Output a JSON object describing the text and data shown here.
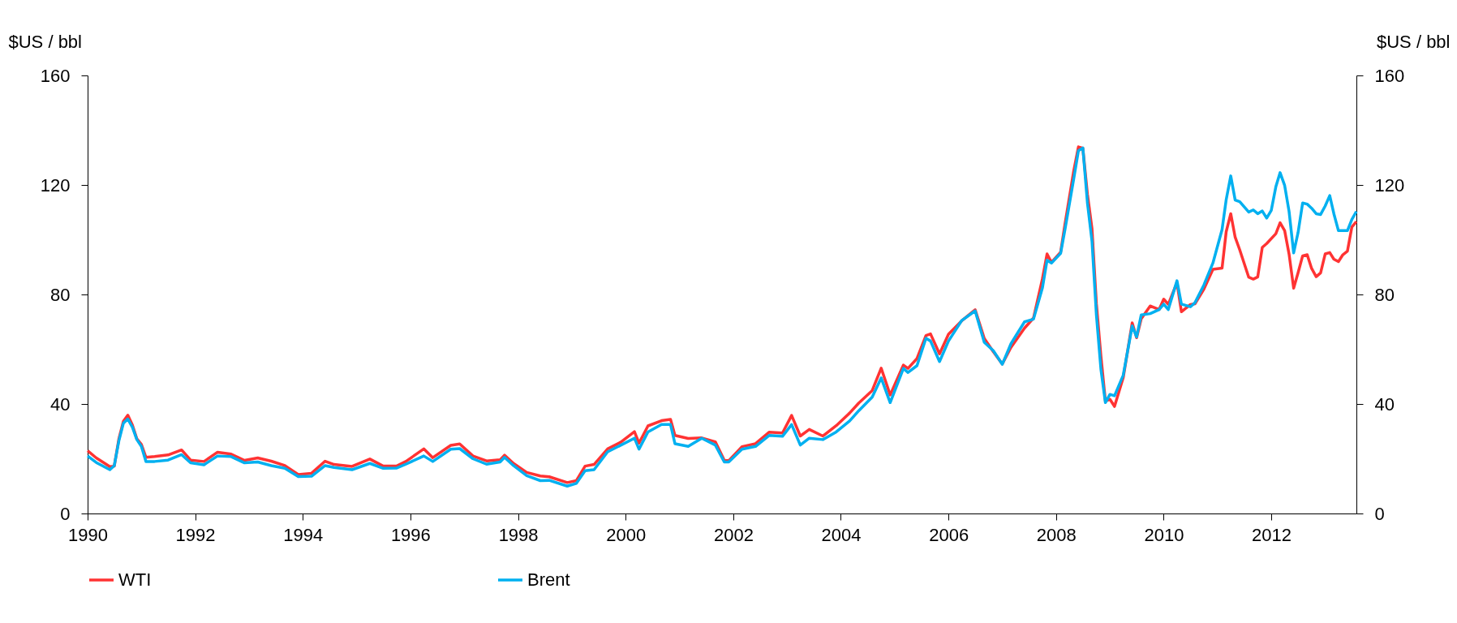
{
  "chart_data": {
    "type": "line",
    "ylabel": "$US / bbl",
    "y2label": "$US / bbl",
    "xlim": [
      "1990-01",
      "2013-08"
    ],
    "xticks": [
      "1990",
      "1992",
      "1994",
      "1996",
      "1998",
      "2000",
      "2002",
      "2004",
      "2006",
      "2008",
      "2010",
      "2012"
    ],
    "ylim": [
      0,
      160
    ],
    "yticks": [
      0,
      40,
      80,
      120,
      160
    ],
    "y2lim": [
      0,
      160
    ],
    "y2ticks": [
      0,
      40,
      80,
      120,
      160
    ],
    "grid": false,
    "legend": "bottom",
    "line_style": "solid",
    "marker": "none",
    "series": [
      {
        "name": "WTI",
        "color": "#ff3333",
        "x": [
          "1990-01",
          "1990-03",
          "1990-06",
          "1990-07",
          "1990-08",
          "1990-09",
          "1990-10",
          "1990-11",
          "1990-12",
          "1991-01",
          "1991-02",
          "1991-04",
          "1991-07",
          "1991-10",
          "1991-12",
          "1992-03",
          "1992-06",
          "1992-09",
          "1992-12",
          "1993-03",
          "1993-06",
          "1993-09",
          "1993-12",
          "1994-03",
          "1994-06",
          "1994-08",
          "1994-12",
          "1995-04",
          "1995-07",
          "1995-10",
          "1995-12",
          "1996-04",
          "1996-06",
          "1996-10",
          "1996-12",
          "1997-03",
          "1997-06",
          "1997-09",
          "1997-10",
          "1997-12",
          "1998-03",
          "1998-06",
          "1998-08",
          "1998-12",
          "1999-02",
          "1999-04",
          "1999-06",
          "1999-09",
          "1999-12",
          "2000-03",
          "2000-04",
          "2000-06",
          "2000-09",
          "2000-11",
          "2000-12",
          "2001-03",
          "2001-06",
          "2001-09",
          "2001-11",
          "2001-12",
          "2002-03",
          "2002-06",
          "2002-09",
          "2002-12",
          "2003-02",
          "2003-04",
          "2003-06",
          "2003-09",
          "2003-12",
          "2004-03",
          "2004-05",
          "2004-08",
          "2004-10",
          "2004-12",
          "2005-03",
          "2005-04",
          "2005-06",
          "2005-08",
          "2005-09",
          "2005-11",
          "2006-01",
          "2006-04",
          "2006-07",
          "2006-09",
          "2006-11",
          "2007-01",
          "2007-03",
          "2007-06",
          "2007-08",
          "2007-10",
          "2007-11",
          "2007-12",
          "2008-02",
          "2008-03",
          "2008-05",
          "2008-06",
          "2008-07",
          "2008-08",
          "2008-09",
          "2008-10",
          "2008-11",
          "2008-12",
          "2009-01",
          "2009-02",
          "2009-04",
          "2009-06",
          "2009-07",
          "2009-08",
          "2009-10",
          "2009-12",
          "2010-01",
          "2010-02",
          "2010-04",
          "2010-05",
          "2010-07",
          "2010-08",
          "2010-10",
          "2010-12",
          "2011-02",
          "2011-03",
          "2011-04",
          "2011-05",
          "2011-06",
          "2011-08",
          "2011-09",
          "2011-10",
          "2011-11",
          "2011-12",
          "2012-02",
          "2012-03",
          "2012-04",
          "2012-05",
          "2012-06",
          "2012-07",
          "2012-08",
          "2012-09",
          "2012-10",
          "2012-11",
          "2012-12",
          "2013-01",
          "2013-02",
          "2013-03",
          "2013-04",
          "2013-05",
          "2013-06",
          "2013-07",
          "2013-08"
        ],
        "values": [
          22.9,
          20.3,
          17.1,
          17.3,
          27.2,
          33.7,
          35.9,
          32.3,
          27.3,
          25.2,
          20.5,
          20.8,
          21.4,
          23.2,
          19.5,
          19.0,
          22.4,
          21.7,
          19.4,
          20.3,
          19.1,
          17.5,
          14.2,
          14.7,
          19.1,
          17.9,
          17.2,
          19.9,
          17.3,
          17.4,
          19.0,
          23.6,
          20.4,
          24.9,
          25.4,
          21.0,
          19.2,
          19.6,
          21.3,
          18.3,
          15.0,
          13.7,
          13.4,
          11.3,
          12.0,
          17.3,
          17.9,
          23.6,
          26.1,
          29.9,
          25.7,
          32.0,
          33.9,
          34.4,
          28.5,
          27.4,
          27.6,
          26.2,
          19.4,
          19.3,
          24.4,
          25.5,
          29.7,
          29.4,
          35.8,
          28.3,
          30.7,
          28.3,
          32.1,
          36.7,
          40.3,
          44.9,
          53.1,
          43.3,
          54.2,
          53.0,
          56.6,
          65.0,
          65.6,
          58.3,
          65.5,
          70.4,
          74.4,
          63.9,
          59.1,
          54.6,
          60.7,
          67.7,
          71.4,
          85.8,
          94.8,
          91.7,
          95.4,
          105.5,
          125.4,
          133.9,
          133.4,
          116.7,
          104.1,
          76.6,
          57.3,
          41.1,
          41.7,
          39.1,
          49.6,
          69.6,
          64.2,
          71.1,
          75.8,
          74.5,
          78.3,
          76.4,
          84.3,
          73.7,
          76.3,
          76.6,
          82.0,
          89.2,
          89.6,
          102.9,
          109.5,
          100.9,
          96.3,
          86.3,
          85.6,
          86.4,
          97.2,
          98.6,
          102.2,
          106.2,
          103.3,
          94.7,
          82.3,
          87.9,
          94.1,
          94.5,
          89.5,
          86.5,
          87.9,
          94.8,
          95.3,
          92.9,
          92.0,
          94.5,
          95.8,
          104.6,
          106.6
        ]
      },
      {
        "name": "Brent",
        "color": "#00b0f0",
        "x": [
          "1990-01",
          "1990-03",
          "1990-06",
          "1990-07",
          "1990-08",
          "1990-09",
          "1990-10",
          "1990-11",
          "1990-12",
          "1991-01",
          "1991-02",
          "1991-04",
          "1991-07",
          "1991-10",
          "1991-12",
          "1992-03",
          "1992-06",
          "1992-09",
          "1992-12",
          "1993-03",
          "1993-06",
          "1993-09",
          "1993-12",
          "1994-03",
          "1994-06",
          "1994-08",
          "1994-12",
          "1995-04",
          "1995-07",
          "1995-10",
          "1995-12",
          "1996-04",
          "1996-06",
          "1996-10",
          "1996-12",
          "1997-03",
          "1997-06",
          "1997-09",
          "1997-10",
          "1997-12",
          "1998-03",
          "1998-06",
          "1998-08",
          "1998-12",
          "1999-02",
          "1999-04",
          "1999-06",
          "1999-09",
          "1999-12",
          "2000-03",
          "2000-04",
          "2000-06",
          "2000-09",
          "2000-11",
          "2000-12",
          "2001-03",
          "2001-06",
          "2001-09",
          "2001-11",
          "2001-12",
          "2002-03",
          "2002-06",
          "2002-09",
          "2002-12",
          "2003-02",
          "2003-04",
          "2003-06",
          "2003-09",
          "2003-12",
          "2004-03",
          "2004-05",
          "2004-08",
          "2004-10",
          "2004-12",
          "2005-03",
          "2005-04",
          "2005-06",
          "2005-08",
          "2005-09",
          "2005-11",
          "2006-01",
          "2006-04",
          "2006-07",
          "2006-09",
          "2006-11",
          "2007-01",
          "2007-03",
          "2007-06",
          "2007-08",
          "2007-10",
          "2007-11",
          "2007-12",
          "2008-02",
          "2008-03",
          "2008-05",
          "2008-06",
          "2008-07",
          "2008-08",
          "2008-09",
          "2008-10",
          "2008-11",
          "2008-12",
          "2009-01",
          "2009-02",
          "2009-04",
          "2009-06",
          "2009-07",
          "2009-08",
          "2009-10",
          "2009-12",
          "2010-01",
          "2010-02",
          "2010-04",
          "2010-05",
          "2010-07",
          "2010-08",
          "2010-10",
          "2010-12",
          "2011-02",
          "2011-03",
          "2011-04",
          "2011-05",
          "2011-06",
          "2011-08",
          "2011-09",
          "2011-10",
          "2011-11",
          "2011-12",
          "2012-01",
          "2012-02",
          "2012-03",
          "2012-04",
          "2012-05",
          "2012-06",
          "2012-07",
          "2012-08",
          "2012-09",
          "2012-10",
          "2012-11",
          "2012-12",
          "2013-01",
          "2013-02",
          "2013-03",
          "2013-04",
          "2013-05",
          "2013-06",
          "2013-07",
          "2013-08"
        ],
        "values": [
          21.0,
          18.6,
          16.0,
          17.5,
          26.5,
          33.0,
          34.5,
          31.5,
          27.0,
          24.5,
          19.0,
          19.0,
          19.5,
          21.5,
          18.5,
          17.8,
          21.0,
          20.8,
          18.5,
          18.8,
          17.5,
          16.5,
          13.5,
          13.6,
          17.5,
          16.8,
          16.0,
          18.3,
          16.5,
          16.6,
          18.0,
          21.0,
          19.0,
          23.5,
          23.7,
          20.0,
          18.0,
          18.8,
          20.5,
          17.5,
          13.8,
          12.0,
          12.1,
          10.0,
          11.0,
          15.6,
          16.0,
          22.5,
          25.0,
          27.5,
          23.5,
          29.8,
          32.5,
          32.5,
          25.5,
          24.5,
          27.5,
          25.0,
          18.8,
          18.8,
          23.5,
          24.5,
          28.5,
          28.2,
          32.5,
          25.0,
          27.5,
          27.0,
          29.8,
          33.8,
          37.5,
          42.5,
          49.5,
          40.5,
          53.0,
          51.5,
          54.0,
          64.0,
          63.0,
          55.5,
          63.0,
          70.5,
          74.0,
          62.5,
          59.5,
          54.5,
          62.0,
          70.0,
          71.0,
          82.5,
          92.5,
          91.5,
          95.0,
          103.5,
          122.5,
          132.5,
          133.5,
          113.5,
          99.5,
          72.5,
          52.5,
          40.5,
          43.5,
          43.0,
          50.5,
          68.5,
          64.5,
          72.5,
          73.0,
          74.5,
          76.5,
          74.5,
          85.0,
          76.5,
          75.5,
          77.0,
          83.5,
          91.5,
          103.7,
          114.6,
          123.3,
          114.5,
          113.9,
          110.1,
          110.9,
          109.5,
          110.5,
          107.9,
          110.7,
          119.3,
          124.5,
          119.8,
          110.3,
          95.2,
          102.6,
          113.4,
          113.0,
          111.5,
          109.5,
          109.2,
          112.3,
          116.1,
          109.5,
          103.3,
          103.3,
          103.3,
          107.4,
          110.3
        ]
      }
    ]
  }
}
